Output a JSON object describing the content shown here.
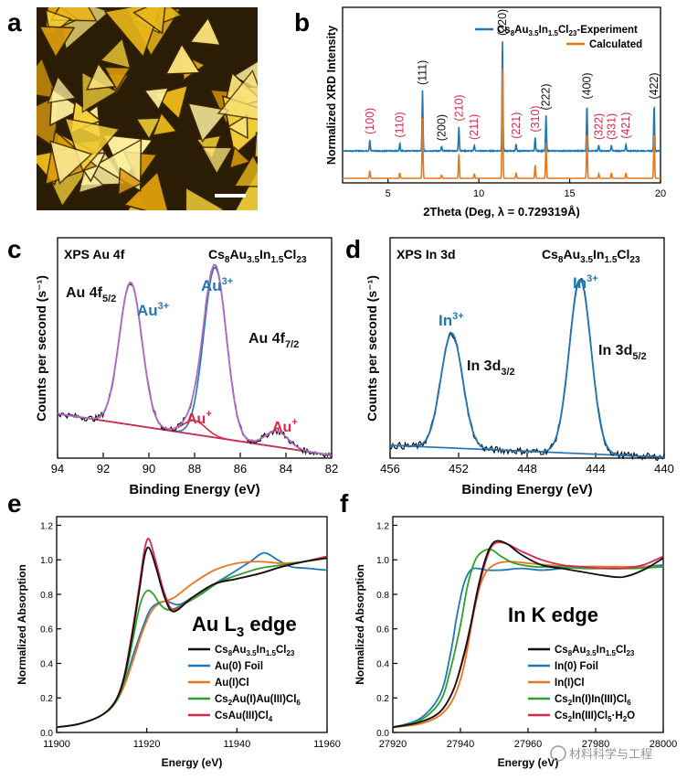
{
  "colors": {
    "black": "#111111",
    "blue": "#1f78b4",
    "orange": "#e8771c",
    "red": "#d6294a",
    "purple": "#b06ac8",
    "gray": "#bbbbbb",
    "green": "#2ea02c",
    "bg": "#ffffff"
  },
  "panels": {
    "a": {
      "letter": "a"
    },
    "b": {
      "letter": "b"
    },
    "c": {
      "letter": "c"
    },
    "d": {
      "letter": "d"
    },
    "e": {
      "letter": "e"
    },
    "f": {
      "letter": "f"
    }
  },
  "watermark": {
    "text": "材料科学与工程"
  },
  "chart_data": [
    {
      "id": "b",
      "type": "line",
      "xlabel": "2Theta (Deg, λ = 0.729319Å)",
      "ylabel": "Normalized XRD Intensity",
      "xlim": [
        2.5,
        20
      ],
      "xticks": [
        "5",
        "10",
        "15",
        "20"
      ],
      "legend": [
        "Cs8Au3.5In1.5Cl23-Experiment",
        "Calculated"
      ],
      "legend_position": "top-right",
      "peaks": [
        {
          "x": 4.0,
          "exp": 0.1,
          "calc": 0.07,
          "label": "(100)",
          "color": "red"
        },
        {
          "x": 5.65,
          "exp": 0.07,
          "calc": 0.05,
          "label": "(110)",
          "color": "red"
        },
        {
          "x": 6.9,
          "exp": 0.55,
          "calc": 0.55,
          "label": "(111)",
          "color": "black"
        },
        {
          "x": 7.95,
          "exp": 0.04,
          "calc": 0.03,
          "label": "(200)",
          "color": "black"
        },
        {
          "x": 8.9,
          "exp": 0.22,
          "calc": 0.22,
          "label": "(210)",
          "color": "red"
        },
        {
          "x": 9.75,
          "exp": 0.05,
          "calc": 0.04,
          "label": "(211)",
          "color": "red"
        },
        {
          "x": 11.3,
          "exp": 1.0,
          "calc": 1.0,
          "label": "(220)",
          "color": "black"
        },
        {
          "x": 12.05,
          "exp": 0.06,
          "calc": 0.05,
          "label": "(221)",
          "color": "red"
        },
        {
          "x": 13.1,
          "exp": 0.12,
          "calc": 0.12,
          "label": "(310)",
          "color": "red"
        },
        {
          "x": 13.7,
          "exp": 0.32,
          "calc": 0.32,
          "label": "(222)",
          "color": "black"
        },
        {
          "x": 15.95,
          "exp": 0.42,
          "calc": 0.42,
          "label": "(400)",
          "color": "black"
        },
        {
          "x": 16.6,
          "exp": 0.05,
          "calc": 0.04,
          "label": "(322)",
          "color": "red"
        },
        {
          "x": 17.3,
          "exp": 0.05,
          "calc": 0.05,
          "label": "(331)",
          "color": "red"
        },
        {
          "x": 18.1,
          "exp": 0.06,
          "calc": 0.05,
          "label": "(421)",
          "color": "red"
        },
        {
          "x": 19.65,
          "exp": 0.42,
          "calc": 0.42,
          "label": "(422)",
          "color": "black"
        }
      ]
    },
    {
      "id": "c",
      "type": "line",
      "title": "XPS Au 4f",
      "compound": "Cs8Au3.5In1.5Cl23",
      "xlabel": "Binding Energy (eV)",
      "ylabel": "Counts per second (s⁻¹)",
      "xlim": [
        94,
        82
      ],
      "ylim": [
        0,
        1.1
      ],
      "xticks": [
        "94",
        "92",
        "90",
        "88",
        "86",
        "84",
        "82"
      ],
      "background": {
        "start": 0.22,
        "end": 0.01
      },
      "components": [
        {
          "name": "Au3+ 4f5/2",
          "center": 90.8,
          "amp": 0.72,
          "width": 0.7,
          "color": "blue"
        },
        {
          "name": "Au3+ 4f7/2",
          "center": 87.1,
          "amp": 0.86,
          "width": 0.7,
          "color": "blue"
        },
        {
          "name": "Au+ 4f5/2",
          "center": 88.0,
          "amp": 0.07,
          "width": 0.7,
          "color": "red"
        },
        {
          "name": "Au+ 4f7/2",
          "center": 84.4,
          "amp": 0.08,
          "width": 0.7,
          "color": "red"
        }
      ],
      "annotations": {
        "au4f52": "Au 4f5/2",
        "au4f72": "Au 4f7/2",
        "au3_left": "Au3+",
        "au3_right": "Au3+",
        "au1_left": "Au+",
        "au1_right": "Au+"
      }
    },
    {
      "id": "d",
      "type": "line",
      "title": "XPS In 3d",
      "compound": "Cs8Au3.5In1.5Cl23",
      "xlabel": "Binding Energy (eV)",
      "ylabel": "Counts per second (s⁻¹)",
      "xlim": [
        456,
        440
      ],
      "ylim": [
        0,
        1.1
      ],
      "xticks": [
        "456",
        "452",
        "448",
        "444",
        "440"
      ],
      "background": {
        "start": 0.06,
        "end": 0.0
      },
      "components": [
        {
          "name": "In3+ 3d3/2",
          "center": 452.4,
          "amp": 0.58,
          "width": 0.9,
          "color": "blue"
        },
        {
          "name": "In3+ 3d5/2",
          "center": 444.9,
          "amp": 0.88,
          "width": 0.9,
          "color": "blue"
        }
      ],
      "annotations": {
        "in3_left": "In3+",
        "in3_right": "In3+",
        "in3d32": "In 3d3/2",
        "in3d52": "In 3d5/2"
      }
    },
    {
      "id": "e",
      "type": "line",
      "title": "Au L3 edge",
      "xlabel": "Energy (eV)",
      "ylabel": "Normalized Absorption",
      "xlim": [
        11900,
        11960
      ],
      "ylim": [
        0,
        1.25
      ],
      "xticks": [
        "11900",
        "11920",
        "11940",
        "11960"
      ],
      "yticks": [
        "0.0",
        "0.2",
        "0.4",
        "0.6",
        "0.8",
        "1.0",
        "1.2"
      ],
      "series": [
        {
          "name": "Cs8Au3.5In1.5Cl23",
          "color": "black",
          "x": [
            11900,
            11905,
            11910,
            11913,
            11915,
            11917,
            11918.5,
            11919.5,
            11920.5,
            11922,
            11924,
            11926,
            11930,
            11935,
            11940,
            11945,
            11950,
            11955,
            11960
          ],
          "y": [
            0.03,
            0.05,
            0.1,
            0.18,
            0.32,
            0.6,
            0.85,
            1.02,
            1.07,
            0.96,
            0.78,
            0.7,
            0.78,
            0.86,
            0.89,
            0.92,
            0.96,
            0.99,
            1.01
          ]
        },
        {
          "name": "Au(0) Foil",
          "color": "blue",
          "x": [
            11900,
            11905,
            11910,
            11913,
            11915,
            11917,
            11919,
            11921,
            11924,
            11927,
            11930,
            11935,
            11940,
            11943,
            11946,
            11949,
            11952,
            11956,
            11960
          ],
          "y": [
            0.03,
            0.05,
            0.1,
            0.17,
            0.28,
            0.45,
            0.6,
            0.72,
            0.76,
            0.74,
            0.78,
            0.86,
            0.94,
            0.99,
            1.04,
            1.0,
            0.96,
            0.95,
            0.94
          ]
        },
        {
          "name": "Au(I)Cl",
          "color": "orange",
          "x": [
            11900,
            11905,
            11910,
            11913,
            11915,
            11917,
            11919,
            11921,
            11923,
            11926,
            11930,
            11935,
            11940,
            11945,
            11950,
            11955,
            11960
          ],
          "y": [
            0.03,
            0.05,
            0.1,
            0.17,
            0.27,
            0.42,
            0.58,
            0.7,
            0.75,
            0.78,
            0.86,
            0.94,
            0.98,
            0.99,
            0.98,
            0.99,
            1.01
          ]
        },
        {
          "name": "Cs2Au(I)Au(III)Cl6",
          "color": "green",
          "x": [
            11900,
            11905,
            11910,
            11913,
            11915,
            11917,
            11918.5,
            11920,
            11921.5,
            11923,
            11925,
            11928,
            11932,
            11936,
            11940,
            11945,
            11950,
            11955,
            11960
          ],
          "y": [
            0.03,
            0.05,
            0.1,
            0.17,
            0.3,
            0.55,
            0.74,
            0.82,
            0.8,
            0.74,
            0.71,
            0.74,
            0.8,
            0.87,
            0.91,
            0.95,
            0.97,
            0.99,
            1.01
          ]
        },
        {
          "name": "CsAu(III)Cl4",
          "color": "red",
          "x": [
            11900,
            11905,
            11910,
            11913,
            11915,
            11917,
            11918.5,
            11919.5,
            11920.5,
            11922,
            11924,
            11926,
            11930,
            11935,
            11940,
            11945,
            11950,
            11955,
            11960
          ],
          "y": [
            0.03,
            0.05,
            0.1,
            0.18,
            0.33,
            0.62,
            0.88,
            1.06,
            1.12,
            0.99,
            0.8,
            0.71,
            0.78,
            0.86,
            0.89,
            0.92,
            0.96,
            0.99,
            1.02
          ]
        }
      ]
    },
    {
      "id": "f",
      "type": "line",
      "title": "In K edge",
      "xlabel": "Energy (eV)",
      "ylabel": "Normalized Absorption",
      "xlim": [
        27920,
        28000
      ],
      "ylim": [
        0,
        1.25
      ],
      "xticks": [
        "27920",
        "27940",
        "27960",
        "27980",
        "28000"
      ],
      "yticks": [
        "0.0",
        "0.2",
        "0.4",
        "0.6",
        "0.8",
        "1.0",
        "1.2"
      ],
      "series": [
        {
          "name": "Cs8Au3.5In1.5Cl23",
          "color": "black",
          "x": [
            27920,
            27928,
            27934,
            27938,
            27941,
            27943,
            27945,
            27947,
            27949,
            27951,
            27954,
            27958,
            27964,
            27970,
            27976,
            27982,
            27988,
            27994,
            28000
          ],
          "y": [
            0.03,
            0.06,
            0.12,
            0.25,
            0.45,
            0.62,
            0.82,
            0.98,
            1.08,
            1.11,
            1.09,
            1.03,
            0.97,
            0.95,
            0.93,
            0.91,
            0.9,
            0.94,
            1.01
          ]
        },
        {
          "name": "In(0) Foil",
          "color": "blue",
          "x": [
            27920,
            27928,
            27934,
            27937,
            27939,
            27941,
            27943,
            27945,
            27948,
            27952,
            27958,
            27964,
            27970,
            27976,
            27982,
            27988,
            27994,
            28000
          ],
          "y": [
            0.03,
            0.08,
            0.22,
            0.45,
            0.68,
            0.86,
            0.94,
            0.95,
            0.94,
            0.94,
            0.95,
            0.94,
            0.95,
            0.96,
            0.96,
            0.95,
            0.96,
            0.97
          ]
        },
        {
          "name": "In(I)Cl",
          "color": "orange",
          "x": [
            27920,
            27928,
            27934,
            27938,
            27941,
            27944,
            27946,
            27948,
            27951,
            27955,
            27960,
            27966,
            27972,
            27980,
            27990,
            28000
          ],
          "y": [
            0.03,
            0.05,
            0.1,
            0.2,
            0.38,
            0.7,
            0.86,
            0.94,
            0.98,
            0.99,
            0.98,
            0.97,
            0.96,
            0.96,
            0.96,
            0.96
          ]
        },
        {
          "name": "Cs2In(I)In(III)Cl6",
          "color": "green",
          "x": [
            27920,
            27928,
            27934,
            27937,
            27940,
            27942,
            27944,
            27946,
            27949,
            27952,
            27956,
            27962,
            27968,
            27976,
            27984,
            27992,
            28000
          ],
          "y": [
            0.03,
            0.07,
            0.18,
            0.36,
            0.62,
            0.84,
            0.98,
            1.04,
            1.06,
            1.02,
            0.98,
            0.96,
            0.96,
            0.95,
            0.95,
            0.95,
            0.96
          ]
        },
        {
          "name": "Cs2In(III)Cl5·H2O",
          "color": "red",
          "x": [
            27920,
            27928,
            27934,
            27938,
            27941,
            27943,
            27945,
            27947,
            27949,
            27951,
            27954,
            27958,
            27964,
            27970,
            27976,
            27982,
            27988,
            27994,
            28000
          ],
          "y": [
            0.03,
            0.06,
            0.12,
            0.25,
            0.44,
            0.61,
            0.8,
            0.96,
            1.07,
            1.1,
            1.09,
            1.05,
            1.0,
            0.97,
            0.96,
            0.95,
            0.95,
            0.97,
            1.02
          ]
        }
      ]
    }
  ]
}
